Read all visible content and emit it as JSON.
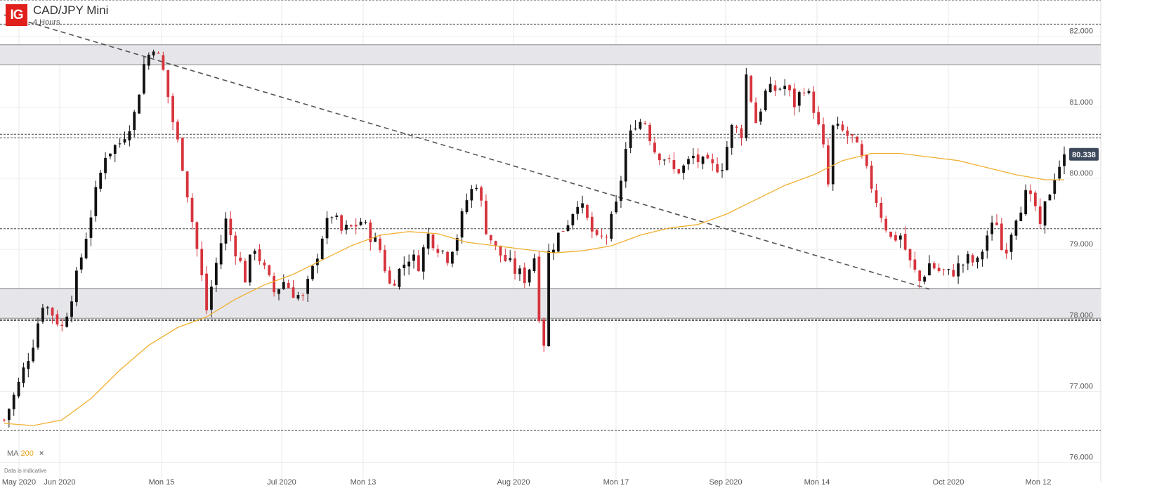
{
  "header": {
    "logo": "IG",
    "title": "CAD/JPY Mini",
    "subtitle": "4 Hours"
  },
  "indicator": {
    "label": "MA",
    "period": "200",
    "close_symbol": "×"
  },
  "disclaimer": "Data is indicative",
  "colors": {
    "bull": "#111111",
    "bear": "#d6333c",
    "ma": "#f0b030",
    "zone": "#e6e6ea",
    "badge": "#3d4a5c"
  },
  "chart_data": {
    "type": "candlestick",
    "title": "CAD/JPY Mini",
    "timeframe": "4 Hours",
    "ylim": [
      75.73,
      82.51
    ],
    "y_ticks": [
      "82.000",
      "81.000",
      "80.000",
      "79.000",
      "78.000",
      "77.000",
      "76.000"
    ],
    "x_ticks": [
      "May 2020",
      "Jun 2020",
      "Mon 15",
      "Jul 2020",
      "Mon 13",
      "Aug 2020",
      "Mon 17",
      "Sep 2020",
      "Mon 14",
      "Oct 2020",
      "Mon 12"
    ],
    "last_price": "80.338",
    "price_path": [
      [
        0,
        76.6
      ],
      [
        3,
        77.1
      ],
      [
        6,
        77.7
      ],
      [
        8,
        78.25
      ],
      [
        10,
        78.1
      ],
      [
        12,
        77.9
      ],
      [
        15,
        78.6
      ],
      [
        18,
        79.5
      ],
      [
        21,
        80.35
      ],
      [
        24,
        80.5
      ],
      [
        27,
        80.9
      ],
      [
        29,
        81.6
      ],
      [
        31,
        81.88
      ],
      [
        33,
        81.5
      ],
      [
        35,
        80.8
      ],
      [
        37,
        80.2
      ],
      [
        39,
        79.4
      ],
      [
        41,
        78.6
      ],
      [
        42,
        78.15
      ],
      [
        44,
        78.8
      ],
      [
        46,
        79.4
      ],
      [
        48,
        79.0
      ],
      [
        50,
        78.6
      ],
      [
        52,
        79.05
      ],
      [
        54,
        78.7
      ],
      [
        56,
        78.4
      ],
      [
        58,
        78.55
      ],
      [
        60,
        78.4
      ],
      [
        62,
        78.3
      ],
      [
        64,
        78.7
      ],
      [
        66,
        79.2
      ],
      [
        68,
        79.5
      ],
      [
        70,
        79.25
      ],
      [
        72,
        79.3
      ],
      [
        74,
        79.4
      ],
      [
        76,
        79.2
      ],
      [
        78,
        79.0
      ],
      [
        80,
        78.5
      ],
      [
        82,
        78.7
      ],
      [
        84,
        78.9
      ],
      [
        86,
        78.8
      ],
      [
        88,
        79.2
      ],
      [
        90,
        79.05
      ],
      [
        92,
        78.9
      ],
      [
        94,
        79.2
      ],
      [
        96,
        79.7
      ],
      [
        98,
        79.95
      ],
      [
        100,
        79.3
      ],
      [
        102,
        79.0
      ],
      [
        104,
        78.85
      ],
      [
        106,
        78.7
      ],
      [
        108,
        78.6
      ],
      [
        110,
        78.9
      ],
      [
        111,
        78.1
      ],
      [
        112,
        77.7
      ],
      [
        113,
        78.95
      ],
      [
        115,
        79.2
      ],
      [
        117,
        79.4
      ],
      [
        119,
        79.7
      ],
      [
        121,
        79.4
      ],
      [
        123,
        79.1
      ],
      [
        125,
        79.2
      ],
      [
        127,
        79.6
      ],
      [
        129,
        80.4
      ],
      [
        131,
        80.8
      ],
      [
        133,
        80.8
      ],
      [
        135,
        80.4
      ],
      [
        137,
        80.3
      ],
      [
        139,
        80.1
      ],
      [
        141,
        80.15
      ],
      [
        143,
        80.3
      ],
      [
        145,
        80.2
      ],
      [
        147,
        80.15
      ],
      [
        149,
        80.2
      ],
      [
        151,
        80.7
      ],
      [
        153,
        80.65
      ],
      [
        154,
        81.45
      ],
      [
        156,
        80.8
      ],
      [
        158,
        81.2
      ],
      [
        160,
        81.25
      ],
      [
        162,
        81.3
      ],
      [
        164,
        81.05
      ],
      [
        166,
        81.3
      ],
      [
        168,
        81.0
      ],
      [
        170,
        80.4
      ],
      [
        171,
        79.9
      ],
      [
        172,
        80.7
      ],
      [
        174,
        80.65
      ],
      [
        176,
        80.55
      ],
      [
        178,
        80.25
      ],
      [
        180,
        79.9
      ],
      [
        182,
        79.5
      ],
      [
        184,
        79.15
      ],
      [
        186,
        79.2
      ],
      [
        188,
        78.8
      ],
      [
        190,
        78.55
      ],
      [
        192,
        78.8
      ],
      [
        194,
        78.7
      ],
      [
        196,
        78.65
      ],
      [
        198,
        78.75
      ],
      [
        200,
        78.85
      ],
      [
        202,
        78.8
      ],
      [
        204,
        79.2
      ],
      [
        206,
        79.4
      ],
      [
        207,
        79.0
      ],
      [
        208,
        79.05
      ],
      [
        210,
        79.5
      ],
      [
        212,
        79.75
      ],
      [
        214,
        79.6
      ],
      [
        215,
        79.25
      ],
      [
        216,
        79.6
      ],
      [
        218,
        80.05
      ],
      [
        220,
        80.338
      ]
    ],
    "ma_path": [
      [
        0,
        76.55
      ],
      [
        6,
        76.52
      ],
      [
        12,
        76.6
      ],
      [
        18,
        76.9
      ],
      [
        24,
        77.3
      ],
      [
        30,
        77.65
      ],
      [
        36,
        77.9
      ],
      [
        42,
        78.05
      ],
      [
        48,
        78.3
      ],
      [
        54,
        78.5
      ],
      [
        60,
        78.65
      ],
      [
        66,
        78.85
      ],
      [
        72,
        79.05
      ],
      [
        78,
        79.2
      ],
      [
        84,
        79.25
      ],
      [
        90,
        79.22
      ],
      [
        96,
        79.1
      ],
      [
        102,
        79.05
      ],
      [
        108,
        79.0
      ],
      [
        114,
        78.95
      ],
      [
        120,
        78.98
      ],
      [
        126,
        79.05
      ],
      [
        132,
        79.2
      ],
      [
        138,
        79.3
      ],
      [
        144,
        79.35
      ],
      [
        150,
        79.5
      ],
      [
        156,
        79.7
      ],
      [
        162,
        79.9
      ],
      [
        168,
        80.05
      ],
      [
        174,
        80.25
      ],
      [
        180,
        80.35
      ],
      [
        186,
        80.35
      ],
      [
        192,
        80.3
      ],
      [
        198,
        80.25
      ],
      [
        204,
        80.15
      ],
      [
        210,
        80.05
      ],
      [
        216,
        79.98
      ],
      [
        220,
        79.98
      ]
    ],
    "support_resistance_zones": [
      {
        "low": 81.6,
        "high": 81.88
      },
      {
        "low": 78.03,
        "high": 78.45
      }
    ],
    "horizontal_levels": [
      82.51,
      82.17,
      80.62,
      80.57,
      79.29,
      78.01,
      78.0,
      76.45
    ],
    "trendline": {
      "start": [
        0,
        82.3
      ],
      "end": [
        192,
        78.44
      ]
    }
  }
}
